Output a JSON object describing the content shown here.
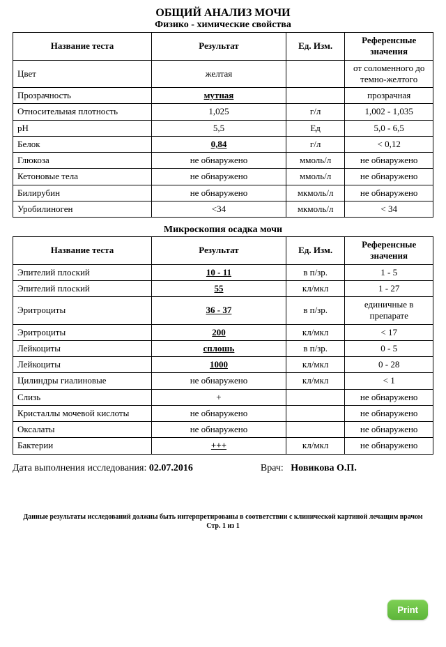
{
  "title": "ОБЩИЙ АНАЛИЗ МОЧИ",
  "section1_title": "Физико - химические свойства",
  "section2_title": "Микроскопия осадка мочи",
  "headers": {
    "name": "Название теста",
    "result": "Результат",
    "unit": "Ед. Изм.",
    "ref": "Референсные значения"
  },
  "section1_rows": [
    {
      "name": "Цвет",
      "result": "желтая",
      "unit": "",
      "ref": "от соломенного до темно-желтого",
      "abn": false
    },
    {
      "name": "Прозрачность",
      "result": "мутная",
      "unit": "",
      "ref": "прозрачная",
      "abn": true
    },
    {
      "name": "Относительная плотность",
      "result": "1,025",
      "unit": "г/л",
      "ref": "1,002 - 1,035",
      "abn": false
    },
    {
      "name": "рН",
      "result": "5,5",
      "unit": "Ед",
      "ref": "5,0 - 6,5",
      "abn": false
    },
    {
      "name": "Белок",
      "result": "0,84",
      "unit": "г/л",
      "ref": "< 0,12",
      "abn": true
    },
    {
      "name": "Глюкоза",
      "result": "не обнаружено",
      "unit": "ммоль/л",
      "ref": "не обнаружено",
      "abn": false
    },
    {
      "name": "Кетоновые тела",
      "result": "не обнаружено",
      "unit": "ммоль/л",
      "ref": "не обнаружено",
      "abn": false
    },
    {
      "name": "Билирубин",
      "result": "не обнаружено",
      "unit": "мкмоль/л",
      "ref": "не обнаружено",
      "abn": false
    },
    {
      "name": "Уробилиноген",
      "result": "<34",
      "unit": "мкмоль/л",
      "ref": "< 34",
      "abn": false
    }
  ],
  "section2_rows": [
    {
      "name": "Эпителий плоский",
      "result": "10 - 11",
      "unit": "в п/зр.",
      "ref": "1 - 5",
      "abn": true
    },
    {
      "name": "Эпителий плоский",
      "result": "55",
      "unit": "кл/мкл",
      "ref": "1 - 27",
      "abn": true
    },
    {
      "name": "Эритроциты",
      "result": "36 - 37",
      "unit": "в п/зр.",
      "ref": "единичные в препарате",
      "abn": true
    },
    {
      "name": "Эритроциты",
      "result": "200",
      "unit": "кл/мкл",
      "ref": "< 17",
      "abn": true
    },
    {
      "name": "Лейкоциты",
      "result": "сплошь",
      "unit": "в п/зр.",
      "ref": "0 - 5",
      "abn": true
    },
    {
      "name": "Лейкоциты",
      "result": "1000",
      "unit": "кл/мкл",
      "ref": "0 - 28",
      "abn": true
    },
    {
      "name": "Цилиндры гиалиновые",
      "result": "не обнаружено",
      "unit": "кл/мкл",
      "ref": "< 1",
      "abn": false
    },
    {
      "name": "Слизь",
      "result": "+",
      "unit": "",
      "ref": "не обнаружено",
      "abn": false
    },
    {
      "name": "Кристаллы мочевой кислоты",
      "result": "не обнаружено",
      "unit": "",
      "ref": "не обнаружено",
      "abn": false
    },
    {
      "name": "Оксалаты",
      "result": "не обнаружено",
      "unit": "",
      "ref": "не обнаружено",
      "abn": false
    },
    {
      "name": "Бактерии",
      "result": "+++",
      "unit": "кл/мкл",
      "ref": "не обнаружено",
      "abn": true
    }
  ],
  "meta": {
    "date_label": "Дата выполнения исследования:",
    "date_value": "02.07.2016",
    "doctor_label": "Врач:",
    "doctor_value": "Новикова О.П."
  },
  "footnote_line1": "Данные результаты исследований должны быть интерпретированы в соответствии с клинической картиной лечащим врачом",
  "footnote_line2": "Стр. 1 из 1",
  "print_button": "Print",
  "colors": {
    "text": "#000000",
    "background": "#ffffff",
    "button_bg": "#6cc24a",
    "button_text": "#ffffff"
  }
}
